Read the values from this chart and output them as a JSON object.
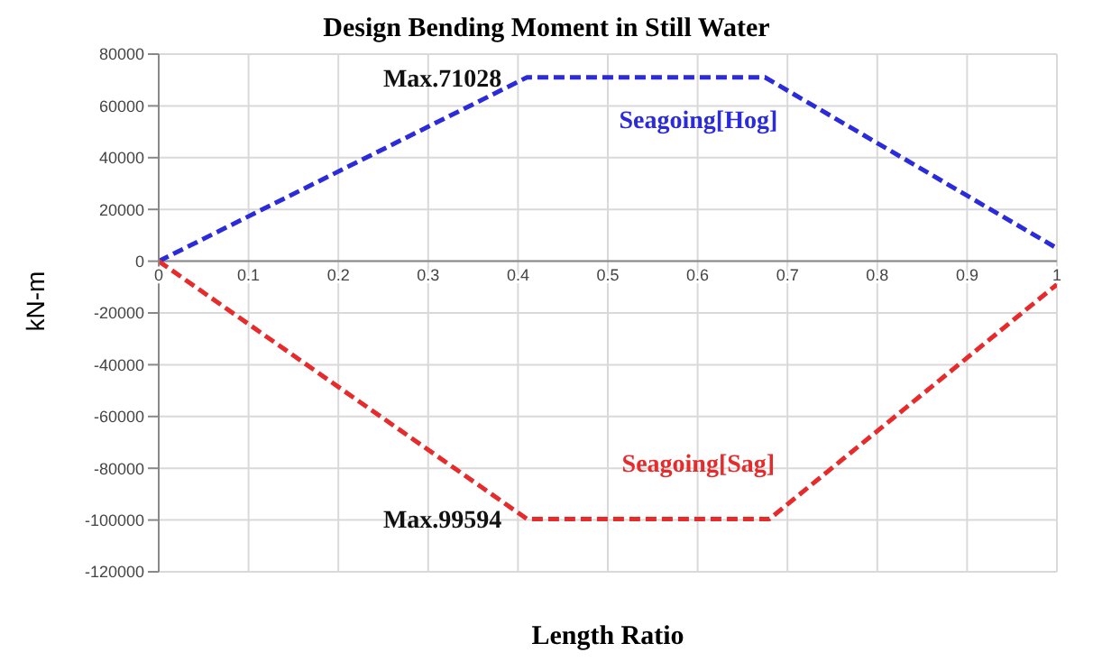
{
  "chart_data": {
    "type": "line",
    "title": "Design Bending Moment in Still Water",
    "xlabel": "Length Ratio",
    "ylabel": "kN-m",
    "xlim": [
      0,
      1
    ],
    "xticks": [
      0,
      0.1,
      0.2,
      0.3,
      0.4,
      0.5,
      0.6,
      0.7,
      0.8,
      0.9,
      1
    ],
    "ylim": [
      -120000,
      80000
    ],
    "yticks": [
      -120000,
      -100000,
      -80000,
      -60000,
      -40000,
      -20000,
      0,
      20000,
      40000,
      60000,
      80000
    ],
    "grid": true,
    "legend": false,
    "marker": "none",
    "line_style": "dashed",
    "series": [
      {
        "name": "Seagoing[Hog]",
        "color": "#2b2bd9",
        "x": [
          0,
          0.41,
          0.675,
          1
        ],
        "values": [
          0,
          71028,
          71028,
          5000
        ]
      },
      {
        "name": "Seagoing[Sag]",
        "color": "#e52b2b",
        "x": [
          0,
          0.41,
          0.68,
          1
        ],
        "values": [
          0,
          -99594,
          -99594,
          -9000
        ]
      }
    ],
    "annotations": [
      {
        "text": "Max.71028",
        "x": 0.41,
        "y": 71028
      },
      {
        "text": "Max.99594",
        "x": 0.41,
        "y": -99594
      }
    ]
  }
}
